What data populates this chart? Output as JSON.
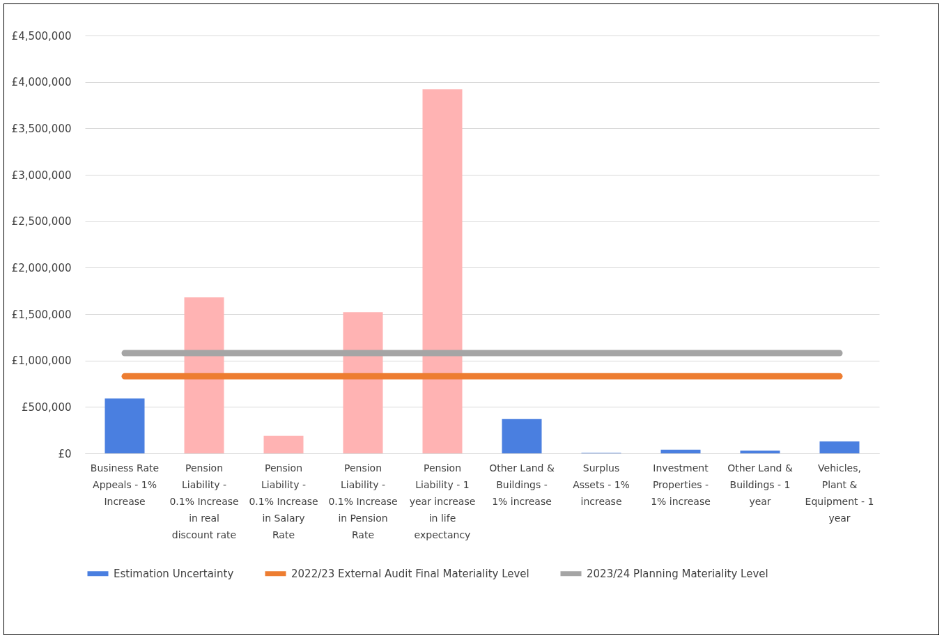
{
  "chart_data": {
    "type": "bar",
    "categories": [
      "Business Rate Appeals - 1% Increase",
      "Pension Liability - 0.1% Increase in real discount rate",
      "Pension Liability - 0.1% Increase in Salary Rate",
      "Pension Liability - 0.1% Increase in Pension Rate",
      "Pension Liability - 1 year increase in life expectancy",
      "Other Land & Buildings - 1% increase",
      "Surplus Assets - 1% increase",
      "Investment Properties - 1% increase",
      "Other Land & Buildings - 1 year",
      "Vehicles, Plant & Equipment - 1 year"
    ],
    "series": [
      {
        "name": "Estimation Uncertainty",
        "color": "#4a7fe0",
        "colors": [
          "#4a7fe0",
          "#ffb3b3",
          "#ffb3b3",
          "#ffb3b3",
          "#ffb3b3",
          "#4a7fe0",
          "#4a7fe0",
          "#4a7fe0",
          "#4a7fe0",
          "#4a7fe0"
        ],
        "values": [
          590000,
          1680000,
          190000,
          1520000,
          3920000,
          370000,
          5000,
          40000,
          30000,
          130000
        ]
      },
      {
        "name": "2022/23 External Audit Final Materiality Level",
        "type": "line",
        "color": "#ed7d31",
        "values": [
          830000,
          830000,
          830000,
          830000,
          830000,
          830000,
          830000,
          830000,
          830000,
          830000
        ]
      },
      {
        "name": "2023/24 Planning Materiality Level",
        "type": "line",
        "color": "#a5a5a5",
        "values": [
          1080000,
          1080000,
          1080000,
          1080000,
          1080000,
          1080000,
          1080000,
          1080000,
          1080000,
          1080000
        ]
      }
    ],
    "ylim": [
      0,
      4500000
    ],
    "yticks": [
      {
        "value": 0,
        "label": "£0"
      },
      {
        "value": 500000,
        "label": "£500,000"
      },
      {
        "value": 1000000,
        "label": "£1,000,000"
      },
      {
        "value": 1500000,
        "label": "£1,500,000"
      },
      {
        "value": 2000000,
        "label": "£2,000,000"
      },
      {
        "value": 2500000,
        "label": "£2,500,000"
      },
      {
        "value": 3000000,
        "label": "£3,000,000"
      },
      {
        "value": 3500000,
        "label": "£3,500,000"
      },
      {
        "value": 4000000,
        "label": "£4,000,000"
      },
      {
        "value": 4500000,
        "label": "£4,500,000"
      }
    ],
    "grid": "y",
    "legend": "bottom"
  }
}
